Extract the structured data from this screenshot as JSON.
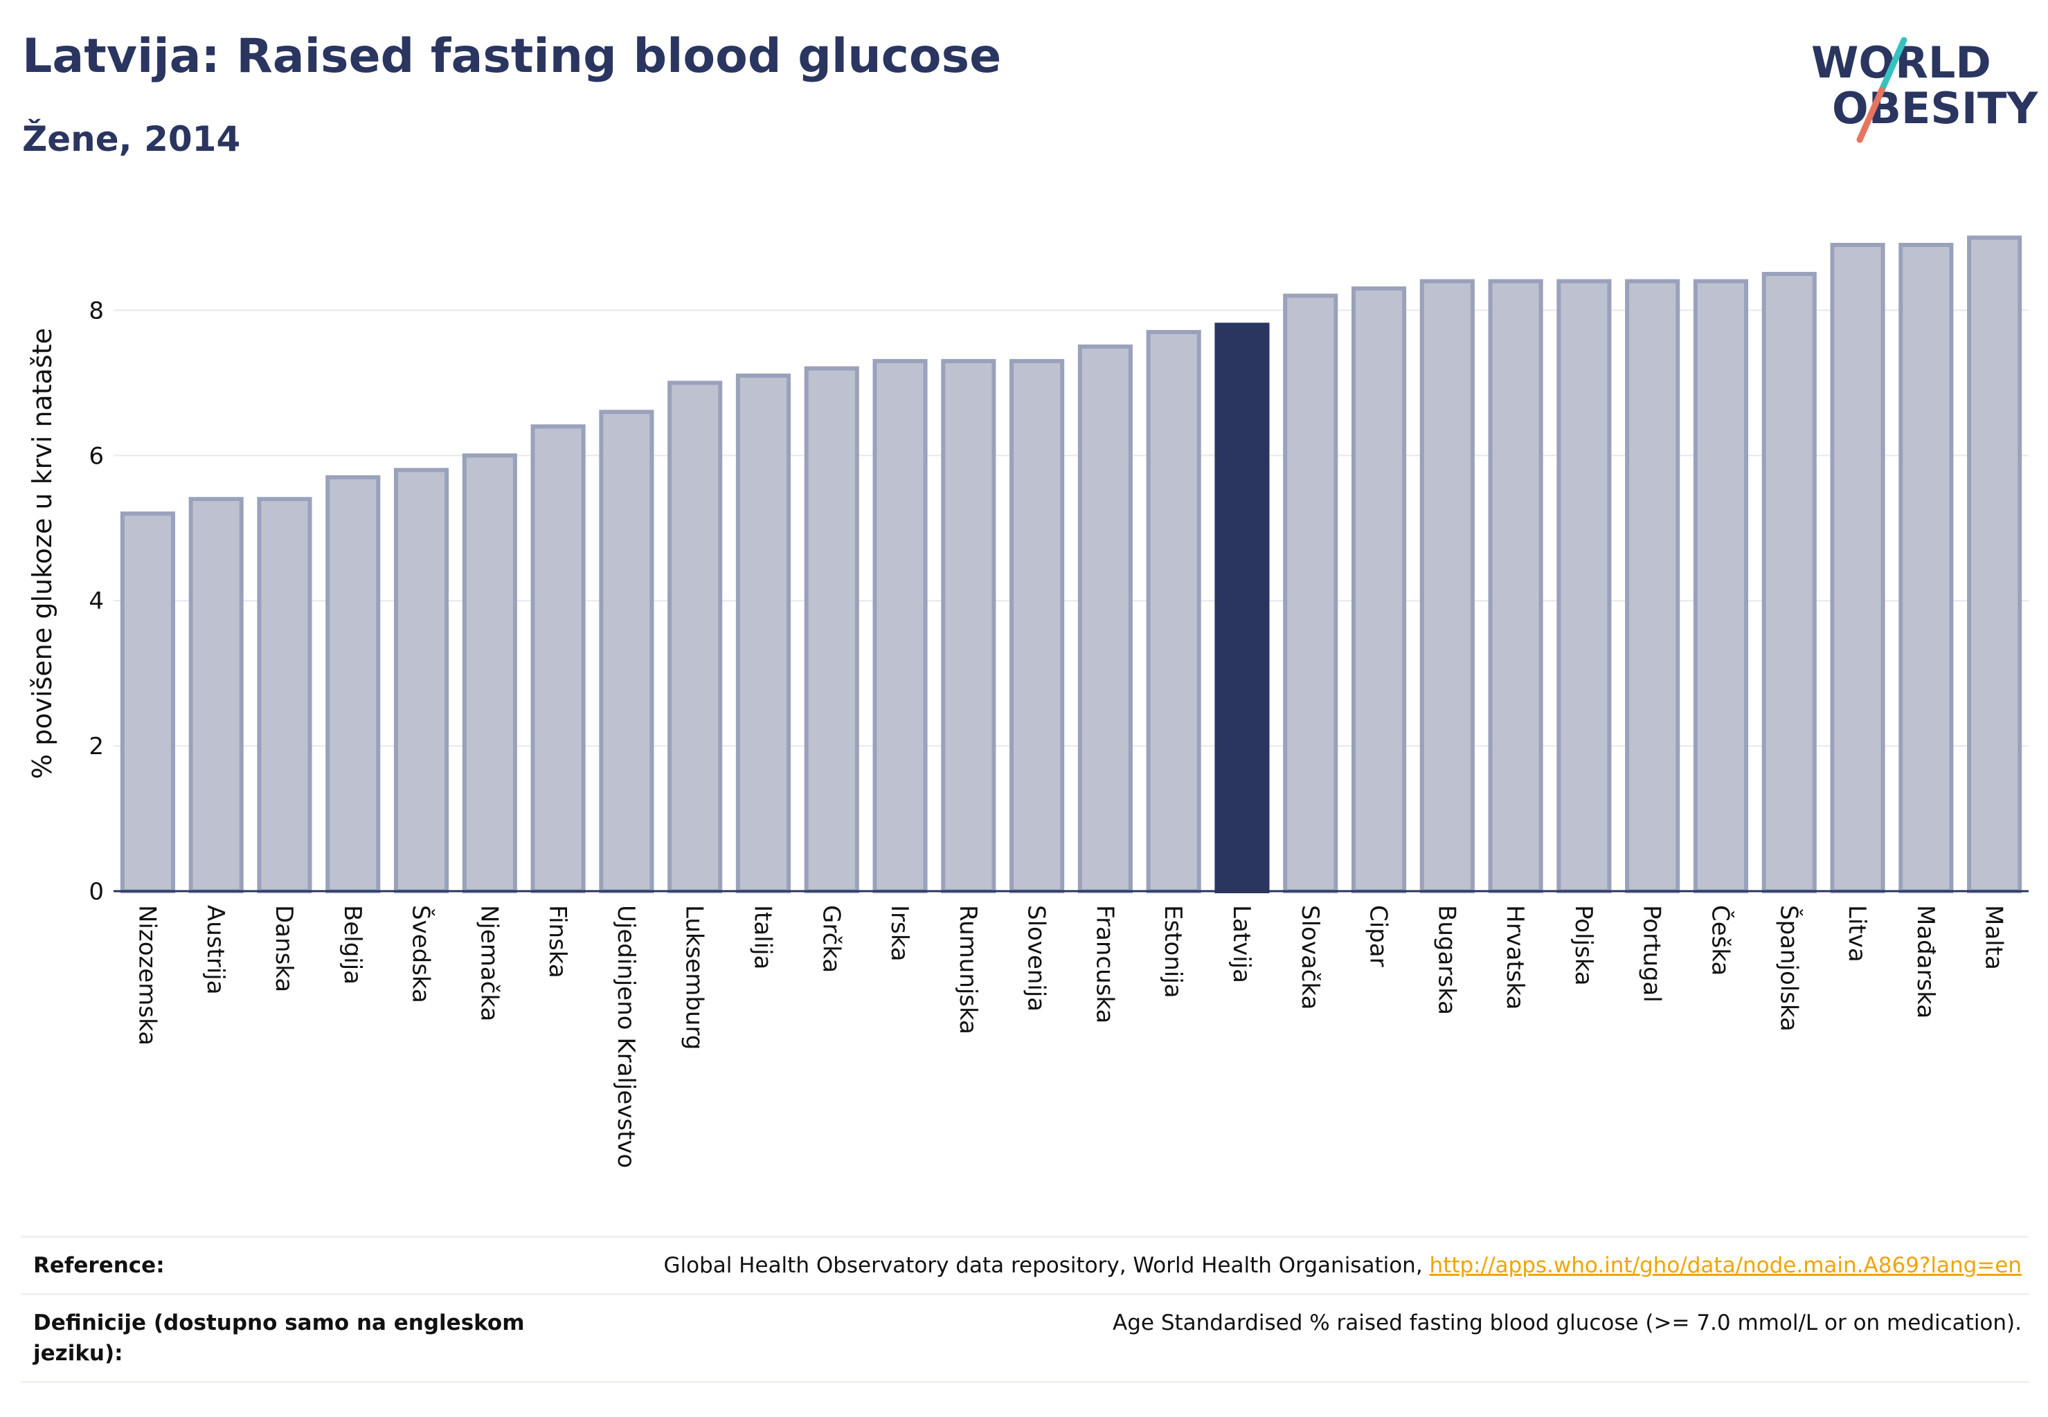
{
  "header": {
    "title": "Latvija: Raised fasting blood glucose",
    "subtitle": "Žene, 2014"
  },
  "logo": {
    "line1": "WORLD",
    "line2": "OBESITY",
    "accent_colors": [
      "#36c2c0",
      "#e8735f"
    ]
  },
  "chart_data": {
    "type": "bar",
    "ylabel": "% povišene glukoze u krvi natašte",
    "xlabel": "",
    "ylim": [
      0,
      9.3
    ],
    "yticks": [
      0,
      2,
      4,
      6,
      8
    ],
    "grid": true,
    "highlight": "Latvija",
    "colors": {
      "bar": "#bec2d0",
      "bar_border": "#9aa1bb",
      "highlight": "#2a3560"
    },
    "categories": [
      "Nizozemska",
      "Austrija",
      "Danska",
      "Belgija",
      "Švedska",
      "Njemačka",
      "Finska",
      "Ujedinjeno Kraljevstvo",
      "Luksemburg",
      "Italija",
      "Grčka",
      "Irska",
      "Rumunjska",
      "Slovenija",
      "Francuska",
      "Estonija",
      "Latvija",
      "Slovačka",
      "Cipar",
      "Bugarska",
      "Hrvatska",
      "Poljska",
      "Portugal",
      "Češka",
      "Španjolska",
      "Litva",
      "Mađarska",
      "Malta"
    ],
    "values": [
      5.2,
      5.4,
      5.4,
      5.7,
      5.8,
      6.0,
      6.4,
      6.6,
      7.0,
      7.1,
      7.2,
      7.3,
      7.3,
      7.3,
      7.5,
      7.7,
      7.8,
      8.2,
      8.3,
      8.4,
      8.4,
      8.4,
      8.4,
      8.4,
      8.5,
      8.9,
      8.9,
      9.0
    ]
  },
  "reference": {
    "label": "Reference:",
    "text": "Global Health Observatory data repository, World Health Organisation, ",
    "link": "http://apps.who.int/gho/data/node.main.A869?lang=en"
  },
  "definition": {
    "label": "Definicije (dostupno samo na engleskom jeziku):",
    "text": "Age Standardised % raised fasting blood glucose (>= 7.0 mmol/L or on medication)."
  }
}
